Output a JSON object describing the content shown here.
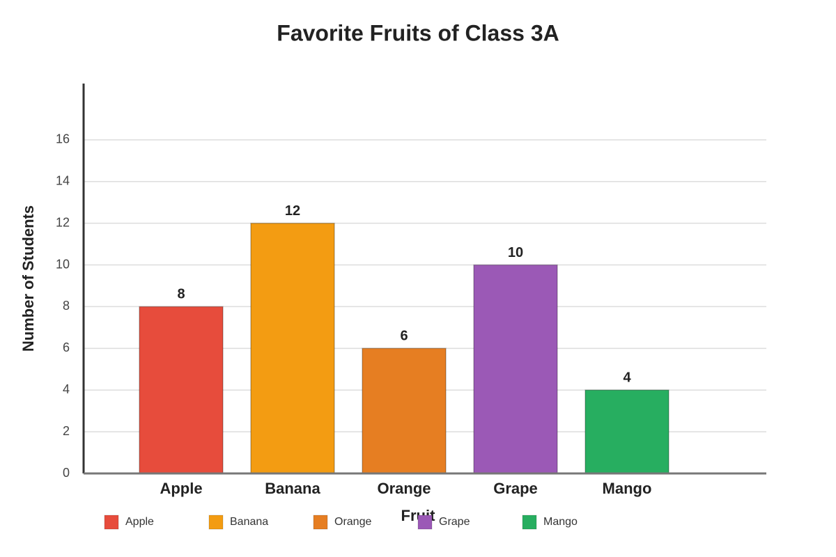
{
  "chart_data": {
    "type": "bar",
    "title": "Favorite Fruits of Class 3A",
    "x_label": "Fruit",
    "y_label": "Number of Students",
    "categories": [
      "Apple",
      "Banana",
      "Orange",
      "Grape",
      "Mango"
    ],
    "values": [
      8,
      12,
      6,
      10,
      4
    ],
    "colors": [
      "#e74c3c",
      "#f39c12",
      "#e67e22",
      "#9b59b6",
      "#27ae60"
    ],
    "ylim": [
      0,
      18.7
    ],
    "yticks": [
      0,
      2,
      4,
      6,
      8,
      10,
      12,
      14,
      16
    ],
    "grid": true
  }
}
